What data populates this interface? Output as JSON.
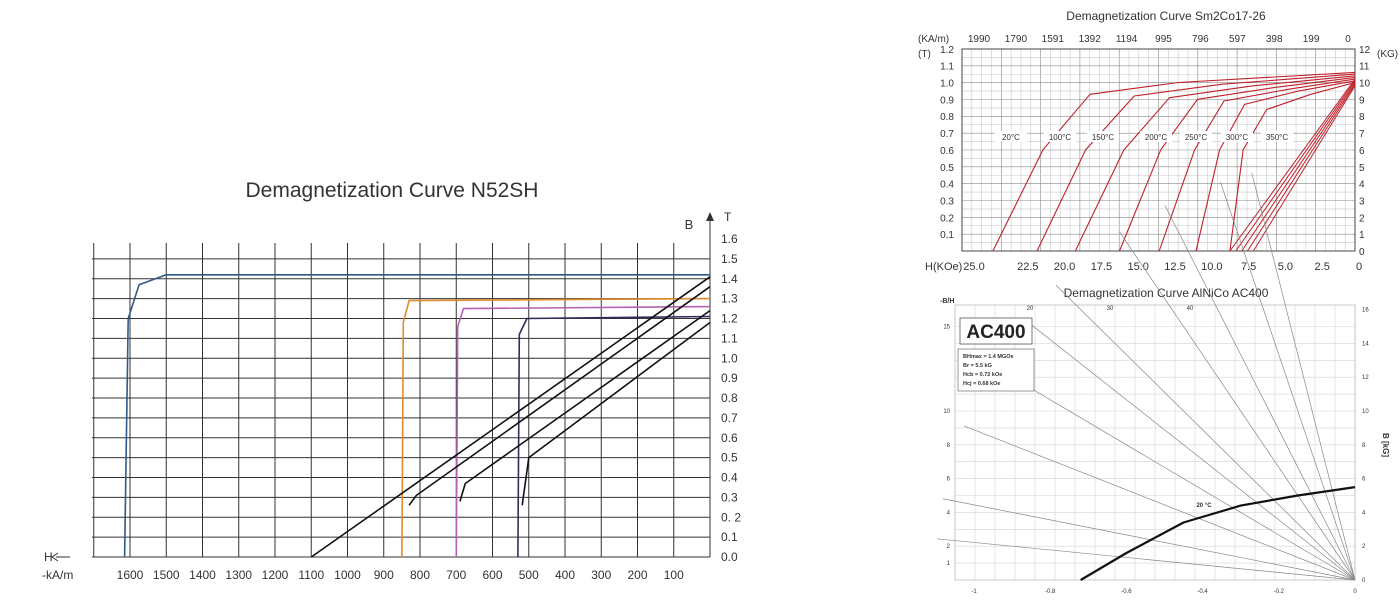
{
  "charts": [
    {
      "title": "Demagnetization Curve N52SH",
      "b_label": "B",
      "t_label": "T",
      "h_label": "H",
      "h_unit": "-kA/m",
      "x_ticks": [
        "1600",
        "1500",
        "1400",
        "1300",
        "1200",
        "1100",
        "1000",
        "900",
        "800",
        "700",
        "600",
        "500",
        "400",
        "300",
        "200",
        "100"
      ],
      "y_ticks": [
        "1.6",
        "1.5",
        "1.4",
        "1.3",
        "1.2",
        "1.1",
        "1.0",
        "0.9",
        "0.8",
        "0.7",
        "0.6",
        "0.5",
        "0.4",
        "0.3",
        "0. 2",
        "0.1",
        "0.0"
      ]
    },
    {
      "title": "Demagnetization Curve Sm2Co17-26",
      "top_unit": "(KA/m)",
      "top_ticks": [
        "1990",
        "1790",
        "1591",
        "1392",
        "1194",
        "995",
        "796",
        "597",
        "398",
        "199",
        "0"
      ],
      "left_unit": "(T)",
      "left_ticks": [
        "1.2",
        "1.1",
        "1.0",
        "0.9",
        "0.8",
        "0.7",
        "0.6",
        "0.5",
        "0.4",
        "0.3",
        "0.2",
        "0.1"
      ],
      "right_unit": "(KG)",
      "right_ticks": [
        "12",
        "11",
        "10",
        "9",
        "8",
        "7",
        "6",
        "5",
        "4",
        "3",
        "2",
        "1",
        "0"
      ],
      "bottom_unit": "H(KOe)",
      "bottom_ticks": [
        "25.0",
        "22.5",
        "20.0",
        "17.5",
        "15.0",
        "12.5",
        "10.0",
        "7.5",
        "5.0",
        "2.5",
        "0"
      ],
      "temps": [
        "20°C",
        "100°C",
        "150°C",
        "200°C",
        "250°C",
        "300°C",
        "350°C"
      ]
    },
    {
      "title": "Demagnetization Curve AlNiCo AC400",
      "y_label": "-B/H",
      "y_ticks": [
        "15",
        "10",
        "8",
        "6",
        "4",
        "2",
        "1"
      ],
      "top_ticks": [
        "20",
        "30",
        "40"
      ],
      "right_label": "B [kG]",
      "right_ticks": [
        "16",
        "14",
        "12",
        "10",
        "8",
        "6",
        "4",
        "2",
        "0"
      ],
      "bottom_ticks": [
        "-1",
        "-0.8",
        "-0.6",
        "-0.4",
        "-0.2",
        "0"
      ],
      "grade": "AC400",
      "specs": [
        "BHmax = 1.4 MGOe",
        "Br = 5.5 kG",
        "Hcb = 0.72 kOe",
        "Hcj = 0.68 kOe"
      ],
      "curve_label": "20 °C"
    }
  ],
  "chart_data": [
    {
      "type": "line",
      "title": "Demagnetization Curve N52SH",
      "xlabel": "-kA/m",
      "ylabel": "T",
      "xlim": [
        1700,
        0
      ],
      "ylim": [
        0,
        1.6
      ],
      "series": [
        {
          "values": [
            [
              1615,
              0.0
            ],
            [
              1605,
              1.2
            ],
            [
              1575,
              1.37
            ],
            [
              1500,
              1.42
            ],
            [
              0,
              1.42
            ]
          ],
          "color": "#2f5a86"
        },
        {
          "values": [
            [
              850,
              0.0
            ],
            [
              846,
              1.18
            ],
            [
              830,
              1.29
            ],
            [
              0,
              1.3
            ]
          ],
          "color": "#e08a2a"
        },
        {
          "values": [
            [
              700,
              0.0
            ],
            [
              696,
              1.16
            ],
            [
              680,
              1.25
            ],
            [
              0,
              1.26
            ]
          ],
          "color": "#b562b5"
        },
        {
          "values": [
            [
              530,
              0.0
            ],
            [
              526,
              1.12
            ],
            [
              505,
              1.2
            ],
            [
              0,
              1.21
            ]
          ],
          "color": "#2e2e5e"
        },
        {
          "values": [
            [
              1100,
              0.0
            ],
            [
              0,
              1.41
            ]
          ],
          "color": "#111111"
        },
        {
          "values": [
            [
              830,
              0.26
            ],
            [
              810,
              0.31
            ],
            [
              0,
              1.36
            ]
          ],
          "color": "#111111"
        },
        {
          "values": [
            [
              690,
              0.28
            ],
            [
              675,
              0.37
            ],
            [
              0,
              1.24
            ]
          ],
          "color": "#111111"
        },
        {
          "values": [
            [
              518,
              0.26
            ],
            [
              500,
              0.5
            ],
            [
              0,
              1.18
            ]
          ],
          "color": "#111111"
        }
      ]
    },
    {
      "type": "line",
      "title": "Demagnetization Curve Sm2Co17-26",
      "xlabel": "H(KOe)",
      "ylabel": "(T)",
      "xlim": [
        25,
        0
      ],
      "ylim": [
        0,
        1.2
      ],
      "series": [
        {
          "name": "20°C",
          "values": [
            [
              24.6,
              0.0
            ],
            [
              21.2,
              0.6
            ],
            [
              18.0,
              0.93
            ],
            [
              12.0,
              1.0
            ],
            [
              0,
              1.06
            ]
          ]
        },
        {
          "name": "100°C",
          "values": [
            [
              21.6,
              0.0
            ],
            [
              18.3,
              0.6
            ],
            [
              15.0,
              0.92
            ],
            [
              9.0,
              0.99
            ],
            [
              0,
              1.05
            ]
          ]
        },
        {
          "name": "150°C",
          "values": [
            [
              19.0,
              0.0
            ],
            [
              15.7,
              0.6
            ],
            [
              12.6,
              0.91
            ],
            [
              7.0,
              0.98
            ],
            [
              0,
              1.04
            ]
          ]
        },
        {
          "name": "200°C",
          "values": [
            [
              16.0,
              0.0
            ],
            [
              13.2,
              0.6
            ],
            [
              10.7,
              0.9
            ],
            [
              5.5,
              0.97
            ],
            [
              0,
              1.03
            ]
          ]
        },
        {
          "name": "250°C",
          "values": [
            [
              13.3,
              0.0
            ],
            [
              10.9,
              0.6
            ],
            [
              8.9,
              0.89
            ],
            [
              4.5,
              0.96
            ],
            [
              0,
              1.02
            ]
          ]
        },
        {
          "name": "300°C",
          "values": [
            [
              10.8,
              0.0
            ],
            [
              9.2,
              0.6
            ],
            [
              7.5,
              0.87
            ],
            [
              3.8,
              0.95
            ],
            [
              0,
              1.01
            ]
          ]
        },
        {
          "name": "350°C",
          "values": [
            [
              8.5,
              0.0
            ],
            [
              7.6,
              0.6
            ],
            [
              6.0,
              0.84
            ],
            [
              3.0,
              0.93
            ],
            [
              0,
              1.0
            ]
          ]
        }
      ],
      "load_lines": [
        {
          "values": [
            [
              8.5,
              0.0
            ],
            [
              0,
              1.02
            ]
          ]
        },
        {
          "values": [
            [
              8.1,
              0.0
            ],
            [
              0,
              1.01
            ]
          ]
        },
        {
          "values": [
            [
              7.7,
              0.0
            ],
            [
              0,
              1.0
            ]
          ]
        },
        {
          "values": [
            [
              7.3,
              0.0
            ],
            [
              0,
              0.99
            ]
          ]
        },
        {
          "values": [
            [
              6.9,
              0.0
            ],
            [
              0,
              0.98
            ]
          ]
        }
      ]
    },
    {
      "type": "line",
      "title": "Demagnetization Curve AlNiCo AC400",
      "xlabel": "",
      "ylabel": "B [kG]",
      "xlim": [
        -1.0,
        0
      ],
      "ylim": [
        0,
        16
      ],
      "series": [
        {
          "name": "20 °C",
          "values": [
            [
              -0.72,
              0.0
            ],
            [
              -0.6,
              1.6
            ],
            [
              -0.45,
              3.4
            ],
            [
              -0.3,
              4.4
            ],
            [
              -0.15,
              5.0
            ],
            [
              0,
              5.5
            ]
          ]
        }
      ],
      "load_line_slopes": [
        1,
        2,
        4,
        6,
        8,
        10,
        15,
        20,
        30,
        40
      ]
    }
  ]
}
